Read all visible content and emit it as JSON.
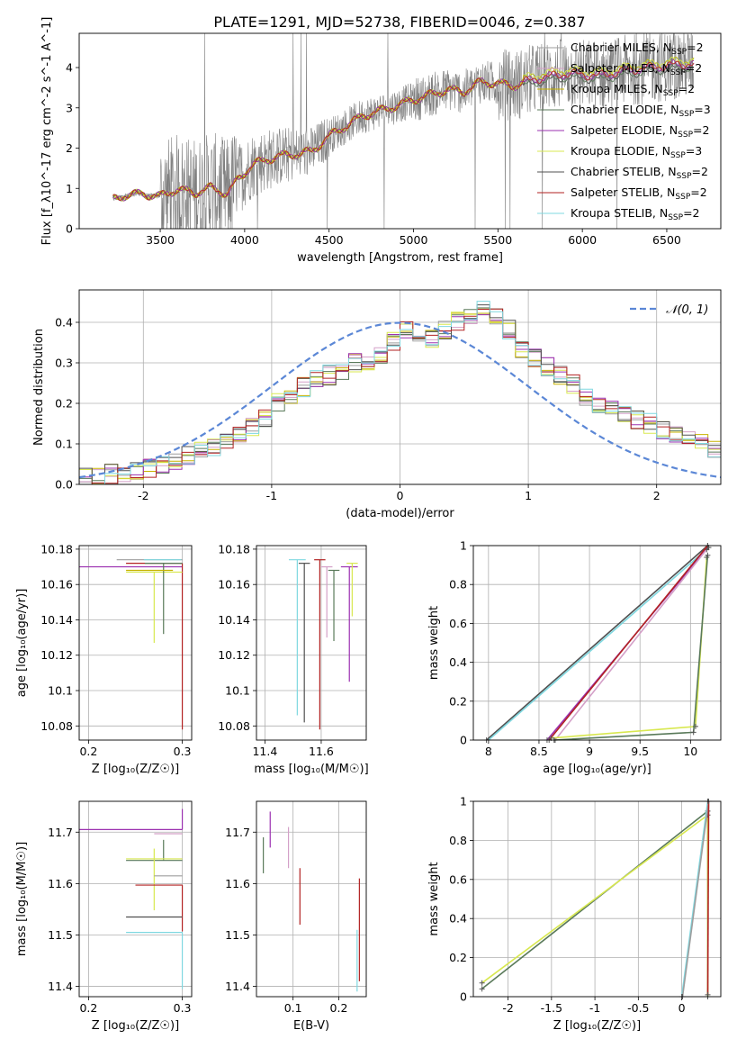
{
  "figure_title": "PLATE=1291, MJD=52738, FIBERID=0046, z=0.387",
  "colors": {
    "data": "#808080",
    "series": [
      "#9E9E9E",
      "#D4A0C8",
      "#C7B300",
      "#5A7A5A",
      "#9B30B0",
      "#D8E850",
      "#505050",
      "#B22222",
      "#7FD8E0"
    ],
    "gaussian": "#5B87D6",
    "grid": "#b0b0b0"
  },
  "chart_data": [
    {
      "id": "spectrum",
      "type": "line",
      "xlabel": "wavelength [Angstrom, rest frame]",
      "ylabel": "Flux [f_λ10^-17 erg cm^-2 s^-1 A^-1]",
      "xlim": [
        3020,
        6820
      ],
      "ylim": [
        0,
        4.85
      ],
      "xticks": [
        3500,
        4000,
        4500,
        5000,
        5500,
        6000,
        6500
      ],
      "yticks": [
        0,
        1,
        2,
        3,
        4
      ],
      "grid": false,
      "legend_position": "top-right",
      "legend": [
        {
          "label": "Chabrier MILES, N",
          "sub": "SSP",
          "suffix": "=2"
        },
        {
          "label": "Salpeter MILES, N",
          "sub": "SSP",
          "suffix": "=2"
        },
        {
          "label": "Kroupa MILES, N",
          "sub": "SSP",
          "suffix": "=2"
        },
        {
          "label": "Chabrier ELODIE, N",
          "sub": "SSP",
          "suffix": "=3"
        },
        {
          "label": "Salpeter ELODIE, N",
          "sub": "SSP",
          "suffix": "=2"
        },
        {
          "label": "Kroupa ELODIE, N",
          "sub": "SSP",
          "suffix": "=3"
        },
        {
          "label": "Chabrier STELIB, N",
          "sub": "SSP",
          "suffix": "=2"
        },
        {
          "label": "Salpeter STELIB, N",
          "sub": "SSP",
          "suffix": "=2"
        },
        {
          "label": "Kroupa STELIB, N",
          "sub": "SSP",
          "suffix": "=2"
        }
      ],
      "continuum": [
        [
          3220,
          0.72
        ],
        [
          3300,
          0.84
        ],
        [
          3400,
          0.86
        ],
        [
          3500,
          0.8
        ],
        [
          3600,
          0.98
        ],
        [
          3700,
          0.88
        ],
        [
          3800,
          1.02
        ],
        [
          3900,
          0.86
        ],
        [
          3950,
          1.18
        ],
        [
          4050,
          1.6
        ],
        [
          4200,
          1.8
        ],
        [
          4300,
          1.85
        ],
        [
          4400,
          1.92
        ],
        [
          4500,
          2.3
        ],
        [
          4700,
          2.8
        ],
        [
          4900,
          3.05
        ],
        [
          5000,
          3.2
        ],
        [
          5200,
          3.45
        ],
        [
          5300,
          3.4
        ],
        [
          5400,
          3.65
        ],
        [
          5600,
          3.55
        ],
        [
          5700,
          3.7
        ],
        [
          5900,
          3.85
        ],
        [
          6100,
          3.8
        ],
        [
          6300,
          3.95
        ],
        [
          6500,
          4.05
        ],
        [
          6660,
          4.1
        ]
      ]
    },
    {
      "id": "residuals",
      "type": "step-histogram",
      "xlabel": "(data-model)/error",
      "ylabel": "Normed distribution",
      "xlim": [
        -2.5,
        2.5
      ],
      "ylim": [
        0,
        0.48
      ],
      "xticks": [
        -2,
        -1,
        0,
        1,
        2
      ],
      "yticks": [
        0.0,
        0.1,
        0.2,
        0.3,
        0.4
      ],
      "grid": true,
      "legend_position": "top-right",
      "gaussian_label": "𝒩(0, 1)",
      "bins": [
        -2.5,
        -2.4,
        -2.3,
        -2.2,
        -2.1,
        -2.0,
        -1.9,
        -1.8,
        -1.7,
        -1.6,
        -1.5,
        -1.4,
        -1.3,
        -1.2,
        -1.1,
        -1.0,
        -0.9,
        -0.8,
        -0.7,
        -0.6,
        -0.5,
        -0.4,
        -0.3,
        -0.2,
        -0.1,
        0.0,
        0.1,
        0.2,
        0.3,
        0.4,
        0.5,
        0.6,
        0.7,
        0.8,
        0.9,
        1.0,
        1.1,
        1.2,
        1.3,
        1.4,
        1.5,
        1.6,
        1.7,
        1.8,
        1.9,
        2.0,
        2.1,
        2.2,
        2.3,
        2.4,
        2.5
      ],
      "base": [
        0.015,
        0.02,
        0.025,
        0.03,
        0.035,
        0.04,
        0.05,
        0.06,
        0.07,
        0.08,
        0.09,
        0.1,
        0.12,
        0.14,
        0.16,
        0.2,
        0.22,
        0.24,
        0.26,
        0.27,
        0.28,
        0.3,
        0.3,
        0.32,
        0.35,
        0.38,
        0.37,
        0.36,
        0.38,
        0.4,
        0.42,
        0.43,
        0.41,
        0.38,
        0.33,
        0.31,
        0.29,
        0.27,
        0.25,
        0.22,
        0.2,
        0.19,
        0.17,
        0.16,
        0.15,
        0.13,
        0.12,
        0.11,
        0.1,
        0.09
      ]
    },
    {
      "id": "age-vs-Z",
      "type": "scatter-errorbar",
      "xlabel": "Z [log₁₀(Z/Z☉)]",
      "ylabel": "age [log₁₀(age/yr)]",
      "xlim": [
        0.19,
        0.31
      ],
      "ylim": [
        10.072,
        10.182
      ],
      "xticks": [
        0.2,
        0.3
      ],
      "yticks": [
        10.08,
        10.1,
        10.12,
        10.14,
        10.16,
        10.18
      ],
      "grid": true,
      "points": [
        {
          "x": 0.3,
          "y": 10.174,
          "xerr": [
            0.07,
            0.0
          ],
          "yerr": [
            0.0,
            0.0
          ],
          "series": 0
        },
        {
          "x": 0.3,
          "y": 10.17,
          "xerr": [
            0.11,
            0.0
          ],
          "yerr": [
            0.0,
            0.0
          ],
          "series": 4
        },
        {
          "x": 0.3,
          "y": 10.172,
          "xerr": [
            0.06,
            0.0
          ],
          "yerr": [
            0.094,
            0.0
          ],
          "series": 7
        },
        {
          "x": 0.27,
          "y": 10.167,
          "xerr": [
            0.03,
            0.03
          ],
          "yerr": [
            0.04,
            0.0
          ],
          "series": 5
        },
        {
          "x": 0.28,
          "y": 10.172,
          "xerr": [
            0.02,
            0.02
          ],
          "yerr": [
            0.04,
            0.0
          ],
          "series": 3
        },
        {
          "x": 0.299,
          "y": 10.174,
          "xerr": [
            0.04,
            0.0
          ],
          "yerr": [
            0.0,
            0.0
          ],
          "series": 8
        },
        {
          "x": 0.29,
          "y": 10.168,
          "xerr": [
            0.05,
            0.0
          ],
          "yerr": [
            0.0,
            0.0
          ],
          "series": 2
        }
      ]
    },
    {
      "id": "age-vs-mass",
      "type": "scatter-errorbar",
      "xlabel": "mass [log₁₀(M/M☉)]",
      "ylabel": "",
      "xlim": [
        11.37,
        11.76
      ],
      "ylim": [
        10.072,
        10.182
      ],
      "xticks": [
        11.4,
        11.6
      ],
      "yticks": [
        10.08,
        10.1,
        10.12,
        10.14,
        10.16,
        10.18
      ],
      "grid": true,
      "points": [
        {
          "x": 11.515,
          "y": 10.174,
          "xerr": [
            0.03,
            0.03
          ],
          "yerr": [
            0.088,
            0.0
          ],
          "series": 8
        },
        {
          "x": 11.54,
          "y": 10.172,
          "xerr": [
            0.02,
            0.02
          ],
          "yerr": [
            0.09,
            0.0
          ],
          "series": 6
        },
        {
          "x": 11.595,
          "y": 10.174,
          "xerr": [
            0.02,
            0.02
          ],
          "yerr": [
            0.096,
            0.0
          ],
          "series": 7
        },
        {
          "x": 11.62,
          "y": 10.17,
          "xerr": [
            0.02,
            0.02
          ],
          "yerr": [
            0.04,
            0.0
          ],
          "series": 1
        },
        {
          "x": 11.645,
          "y": 10.168,
          "xerr": [
            0.02,
            0.02
          ],
          "yerr": [
            0.04,
            0.0
          ],
          "series": 3
        },
        {
          "x": 11.7,
          "y": 10.17,
          "xerr": [
            0.03,
            0.03
          ],
          "yerr": [
            0.065,
            0.0
          ],
          "series": 4
        },
        {
          "x": 11.71,
          "y": 10.172,
          "xerr": [
            0.02,
            0.02
          ],
          "yerr": [
            0.03,
            0.0
          ],
          "series": 5
        }
      ]
    },
    {
      "id": "cum-mass-age",
      "type": "line",
      "xlabel": "age [log₁₀(age/yr)]",
      "ylabel": "mass weight",
      "xlim": [
        7.85,
        10.3
      ],
      "ylim": [
        0.0,
        1.0
      ],
      "xticks": [
        8.0,
        8.5,
        9.0,
        9.5,
        10.0
      ],
      "yticks": [
        0.0,
        0.2,
        0.4,
        0.6,
        0.8,
        1.0
      ],
      "grid": true,
      "series": [
        {
          "series": 6,
          "x": [
            7.98,
            10.17
          ],
          "y": [
            0.0,
            1.0
          ]
        },
        {
          "series": 8,
          "x": [
            8.0,
            10.18
          ],
          "y": [
            0.0,
            0.99
          ]
        },
        {
          "series": 4,
          "x": [
            8.58,
            10.17
          ],
          "y": [
            0.0,
            0.99
          ]
        },
        {
          "series": 1,
          "x": [
            8.66,
            10.16
          ],
          "y": [
            0.0,
            0.98
          ]
        },
        {
          "series": 7,
          "x": [
            8.6,
            10.17
          ],
          "y": [
            0.0,
            1.0
          ]
        },
        {
          "series": 5,
          "x": [
            8.62,
            10.05,
            10.16
          ],
          "y": [
            0.01,
            0.07,
            0.94
          ]
        },
        {
          "series": 3,
          "x": [
            8.65,
            10.03,
            10.17
          ],
          "y": [
            0.0,
            0.04,
            0.95
          ]
        }
      ]
    },
    {
      "id": "mass-vs-Z",
      "type": "scatter-errorbar",
      "xlabel": "Z [log₁₀(Z/Z☉)]",
      "ylabel": "mass [log₁₀(M/M☉)]",
      "xlim": [
        0.19,
        0.31
      ],
      "ylim": [
        11.38,
        11.76
      ],
      "xticks": [
        0.2,
        0.3
      ],
      "yticks": [
        11.4,
        11.5,
        11.6,
        11.7
      ],
      "grid": true,
      "points": [
        {
          "x": 0.3,
          "y": 11.705,
          "xerr": [
            0.11,
            0.0
          ],
          "yerr": [
            0.0,
            0.04
          ],
          "series": 4
        },
        {
          "x": 0.3,
          "y": 11.697,
          "xerr": [
            0.03,
            0.0
          ],
          "yerr": [
            0.0,
            0.0
          ],
          "series": 1
        },
        {
          "x": 0.28,
          "y": 11.645,
          "xerr": [
            0.04,
            0.02
          ],
          "yerr": [
            0.0,
            0.04
          ],
          "series": 3
        },
        {
          "x": 0.27,
          "y": 11.648,
          "xerr": [
            0.03,
            0.03
          ],
          "yerr": [
            0.1,
            0.02
          ],
          "series": 5
        },
        {
          "x": 0.3,
          "y": 11.615,
          "xerr": [
            0.03,
            0.0
          ],
          "yerr": [
            0.0,
            0.0
          ],
          "series": 0
        },
        {
          "x": 0.3,
          "y": 11.597,
          "xerr": [
            0.05,
            0.0
          ],
          "yerr": [
            0.09,
            0.0
          ],
          "series": 7
        },
        {
          "x": 0.3,
          "y": 11.535,
          "xerr": [
            0.06,
            0.0
          ],
          "yerr": [
            0.0,
            0.0
          ],
          "series": 6
        },
        {
          "x": 0.3,
          "y": 11.505,
          "xerr": [
            0.06,
            0.0
          ],
          "yerr": [
            0.11,
            0.0
          ],
          "series": 8
        }
      ]
    },
    {
      "id": "mass-vs-EBV",
      "type": "scatter-errorbar",
      "xlabel": "E(B-V)",
      "ylabel": "",
      "xlim": [
        0.02,
        0.26
      ],
      "ylim": [
        11.38,
        11.76
      ],
      "xticks": [
        0.1,
        0.2
      ],
      "yticks": [
        11.4,
        11.5,
        11.6,
        11.7
      ],
      "grid": true,
      "points": [
        {
          "x": 0.035,
          "y": 11.66,
          "xerr": [
            0.0,
            0.0
          ],
          "yerr": [
            0.04,
            0.03
          ],
          "series": 3
        },
        {
          "x": 0.05,
          "y": 11.7,
          "xerr": [
            0.0,
            0.0
          ],
          "yerr": [
            0.03,
            0.04
          ],
          "series": 4
        },
        {
          "x": 0.09,
          "y": 11.67,
          "xerr": [
            0.0,
            0.0
          ],
          "yerr": [
            0.04,
            0.04
          ],
          "series": 1
        },
        {
          "x": 0.115,
          "y": 11.6,
          "xerr": [
            0.0,
            0.0
          ],
          "yerr": [
            0.08,
            0.03
          ],
          "series": 7
        },
        {
          "x": 0.245,
          "y": 11.53,
          "xerr": [
            0.0,
            0.0
          ],
          "yerr": [
            0.12,
            0.08
          ],
          "series": 7
        },
        {
          "x": 0.24,
          "y": 11.45,
          "xerr": [
            0.0,
            0.0
          ],
          "yerr": [
            0.06,
            0.06
          ],
          "series": 8
        }
      ]
    },
    {
      "id": "cum-mass-Z",
      "type": "line",
      "xlabel": "Z [log₁₀(Z/Z☉)]",
      "ylabel": "mass weight",
      "xlim": [
        -2.4,
        0.45
      ],
      "ylim": [
        0.0,
        1.0
      ],
      "xticks": [
        -2.0,
        -1.5,
        -1.0,
        -0.5,
        0.0
      ],
      "yticks": [
        0.0,
        0.2,
        0.4,
        0.6,
        0.8,
        1.0
      ],
      "grid": true,
      "series": [
        {
          "series": 3,
          "x": [
            -2.3,
            0.3,
            0.3
          ],
          "y": [
            0.04,
            0.95,
            0.0
          ]
        },
        {
          "series": 5,
          "x": [
            -2.3,
            0.3,
            0.3
          ],
          "y": [
            0.07,
            0.93,
            0.0
          ]
        },
        {
          "series": 8,
          "x": [
            0.0,
            0.3
          ],
          "y": [
            0.0,
            1.0
          ]
        },
        {
          "series": 0,
          "x": [
            0.01,
            0.31
          ],
          "y": [
            0.0,
            1.0
          ]
        },
        {
          "series": 7,
          "x": [
            0.3,
            0.31
          ],
          "y": [
            0.01,
            1.0
          ]
        }
      ]
    }
  ]
}
